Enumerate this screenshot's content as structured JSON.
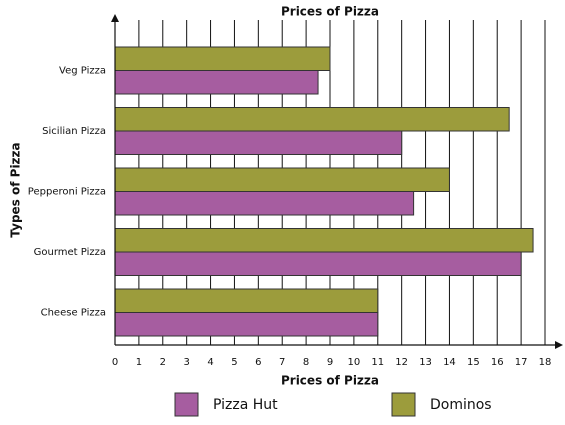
{
  "chart_data": {
    "type": "hbar",
    "title": "Prices of Pizza",
    "x_label": "Prices of Pizza",
    "y_label": "Types of Pizza",
    "categories": [
      "Veg Pizza",
      "Sicilian Pizza",
      "Pepperoni Pizza",
      "Gourmet Pizza",
      "Cheese Pizza"
    ],
    "series": [
      {
        "name": "Pizza Hut",
        "color": "#a65da0",
        "values": [
          8.5,
          12,
          12.5,
          17,
          11
        ]
      },
      {
        "name": "Dominos",
        "color": "#9c9c3c",
        "values": [
          9,
          16.5,
          14,
          17.5,
          11
        ]
      }
    ],
    "xlim": [
      0,
      18
    ],
    "xticks": [
      0,
      1,
      2,
      3,
      4,
      5,
      6,
      7,
      8,
      9,
      10,
      11,
      12,
      13,
      14,
      15,
      16,
      17,
      18
    ],
    "grid": true
  }
}
